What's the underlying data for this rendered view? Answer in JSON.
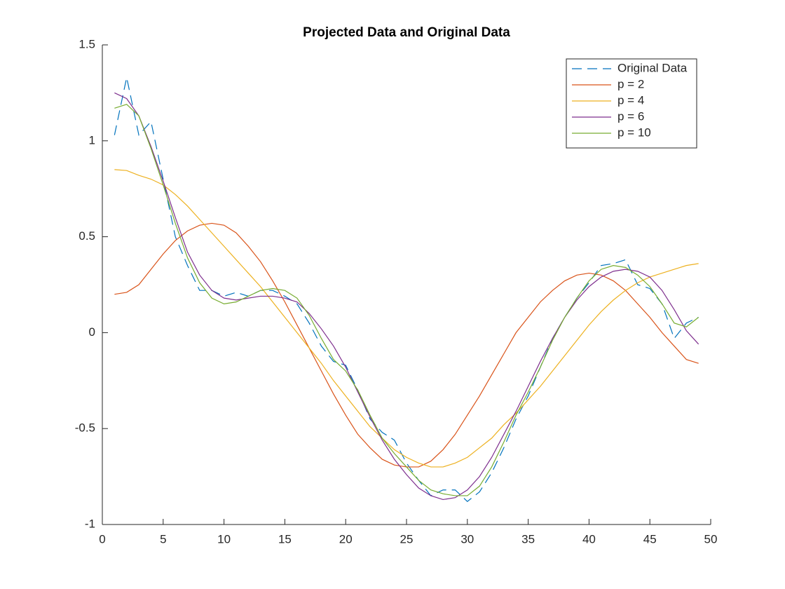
{
  "chart_data": {
    "type": "line",
    "title": "Projected Data and Original Data",
    "x": [
      1,
      2,
      3,
      4,
      5,
      6,
      7,
      8,
      9,
      10,
      11,
      12,
      13,
      14,
      15,
      16,
      17,
      18,
      19,
      20,
      21,
      22,
      23,
      24,
      25,
      26,
      27,
      28,
      29,
      30,
      31,
      32,
      33,
      34,
      35,
      36,
      37,
      38,
      39,
      40,
      41,
      42,
      43,
      44,
      45,
      46,
      47,
      48,
      49
    ],
    "xlim": [
      0,
      50
    ],
    "xticks": [
      0,
      5,
      10,
      15,
      20,
      25,
      30,
      35,
      40,
      45,
      50
    ],
    "ylim": [
      -1,
      1.5
    ],
    "yticks": [
      -1,
      -0.5,
      0,
      0.5,
      1,
      1.5
    ],
    "legend": "northeast",
    "series": [
      {
        "name": "Original Data",
        "color": "#0072BD",
        "line_style": "dashed",
        "values": [
          1.03,
          1.33,
          1.03,
          1.1,
          0.8,
          0.5,
          0.35,
          0.22,
          0.22,
          0.19,
          0.21,
          0.19,
          0.22,
          0.22,
          0.19,
          0.15,
          0.05,
          -0.07,
          -0.15,
          -0.17,
          -0.3,
          -0.45,
          -0.52,
          -0.56,
          -0.68,
          -0.77,
          -0.85,
          -0.82,
          -0.82,
          -0.88,
          -0.83,
          -0.73,
          -0.6,
          -0.45,
          -0.33,
          -0.18,
          -0.03,
          0.08,
          0.18,
          0.26,
          0.35,
          0.36,
          0.38,
          0.25,
          0.23,
          0.15,
          -0.03,
          0.05,
          0.08
        ]
      },
      {
        "name": "p = 2",
        "color": "#D95319",
        "line_style": "solid",
        "values": [
          0.2,
          0.21,
          0.25,
          0.33,
          0.41,
          0.48,
          0.53,
          0.56,
          0.57,
          0.56,
          0.52,
          0.45,
          0.37,
          0.27,
          0.16,
          0.04,
          -0.08,
          -0.2,
          -0.32,
          -0.43,
          -0.53,
          -0.6,
          -0.66,
          -0.69,
          -0.7,
          -0.7,
          -0.67,
          -0.61,
          -0.53,
          -0.43,
          -0.33,
          -0.22,
          -0.11,
          0,
          0.08,
          0.16,
          0.22,
          0.27,
          0.3,
          0.31,
          0.3,
          0.27,
          0.22,
          0.15,
          0.08,
          0,
          -0.07,
          -0.14,
          -0.16
        ]
      },
      {
        "name": "p = 4",
        "color": "#EDB120",
        "line_style": "solid",
        "values": [
          0.85,
          0.845,
          0.82,
          0.8,
          0.77,
          0.72,
          0.66,
          0.59,
          0.52,
          0.45,
          0.38,
          0.31,
          0.24,
          0.16,
          0.08,
          0,
          -0.08,
          -0.16,
          -0.25,
          -0.33,
          -0.41,
          -0.49,
          -0.55,
          -0.61,
          -0.65,
          -0.68,
          -0.7,
          -0.7,
          -0.68,
          -0.65,
          -0.6,
          -0.55,
          -0.48,
          -0.42,
          -0.35,
          -0.28,
          -0.2,
          -0.12,
          -0.04,
          0.04,
          0.11,
          0.17,
          0.22,
          0.26,
          0.29,
          0.31,
          0.33,
          0.35,
          0.36
        ]
      },
      {
        "name": "p = 6",
        "color": "#7E2F8E",
        "line_style": "solid",
        "values": [
          1.25,
          1.22,
          1.13,
          0.97,
          0.79,
          0.6,
          0.42,
          0.3,
          0.22,
          0.18,
          0.17,
          0.18,
          0.19,
          0.19,
          0.18,
          0.16,
          0.1,
          0.02,
          -0.07,
          -0.18,
          -0.31,
          -0.44,
          -0.56,
          -0.66,
          -0.74,
          -0.81,
          -0.85,
          -0.87,
          -0.86,
          -0.82,
          -0.75,
          -0.65,
          -0.53,
          -0.41,
          -0.28,
          -0.15,
          -0.03,
          0.08,
          0.17,
          0.24,
          0.29,
          0.32,
          0.33,
          0.32,
          0.29,
          0.22,
          0.12,
          0.01,
          -0.06
        ]
      },
      {
        "name": "p = 10",
        "color": "#77AC30",
        "line_style": "solid",
        "values": [
          1.17,
          1.19,
          1.13,
          0.96,
          0.77,
          0.57,
          0.39,
          0.26,
          0.18,
          0.15,
          0.16,
          0.19,
          0.22,
          0.23,
          0.22,
          0.18,
          0.09,
          -0.03,
          -0.14,
          -0.2,
          -0.3,
          -0.43,
          -0.55,
          -0.63,
          -0.7,
          -0.77,
          -0.82,
          -0.84,
          -0.85,
          -0.85,
          -0.8,
          -0.7,
          -0.57,
          -0.43,
          -0.31,
          -0.18,
          -0.04,
          0.08,
          0.18,
          0.27,
          0.33,
          0.35,
          0.34,
          0.3,
          0.24,
          0.15,
          0.05,
          0.03,
          0.08
        ]
      }
    ]
  }
}
